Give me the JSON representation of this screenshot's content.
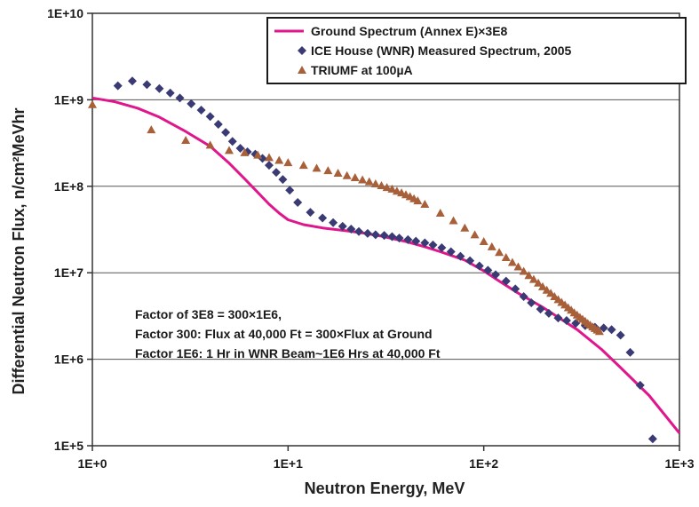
{
  "chart_data": {
    "type": "scatter",
    "xscale": "log",
    "yscale": "log",
    "xlim": [
      1,
      1000
    ],
    "ylim": [
      100000,
      10000000000
    ],
    "xlabel": "Neutron Energy, MeV",
    "ylabel": "Differential Neutron Flux, n/cm²MeVhr",
    "grid": "horizontal",
    "legend_position": "top-right",
    "xticks": [
      "1E+0",
      "1E+1",
      "1E+2",
      "1E+3"
    ],
    "yticks": [
      "1E+5",
      "1E+6",
      "1E+7",
      "1E+8",
      "1E+9",
      "1E+10"
    ],
    "series": [
      {
        "name": "Ground Spectrum (Annex E)×3E8",
        "style": "line",
        "color": "#e0168c",
        "x": [
          1.0,
          1.3,
          1.7,
          2.2,
          3.0,
          4.0,
          5.0,
          6.0,
          7.0,
          8.0,
          9.0,
          10,
          12,
          15,
          20,
          25,
          30,
          40,
          50,
          60,
          80,
          100,
          120,
          150,
          200,
          300,
          400,
          500,
          700,
          1000
        ],
        "y": [
          1050000000.0,
          950000000.0,
          800000000.0,
          630000000.0,
          430000000.0,
          290000000.0,
          185000000.0,
          122000000.0,
          85000000.0,
          62000000.0,
          49000000.0,
          41000000.0,
          36000000.0,
          33000000.0,
          30500000.0,
          28500000.0,
          26500000.0,
          23000000.0,
          20000000.0,
          17500000.0,
          14000000.0,
          10500000.0,
          8000000.0,
          5800000.0,
          4000000.0,
          2200000.0,
          1300000.0,
          800000.0,
          380000.0,
          140000.0
        ]
      },
      {
        "name": "ICE House (WNR) Measured Spectrum, 2005",
        "style": "diamond",
        "color": "#3a3a74",
        "x": [
          1.35,
          1.6,
          1.9,
          2.2,
          2.5,
          2.8,
          3.2,
          3.6,
          4.0,
          4.4,
          4.8,
          5.2,
          5.7,
          6.2,
          6.8,
          7.4,
          8.0,
          8.7,
          9.4,
          10.2,
          11.2,
          13.0,
          15.0,
          17.0,
          19.0,
          21.0,
          23.0,
          25.5,
          28.0,
          31.0,
          34.0,
          37.0,
          41.0,
          45.0,
          50.0,
          55.0,
          61.0,
          68.0,
          76.0,
          85.0,
          95.0,
          105,
          115,
          130,
          145,
          160,
          175,
          195,
          215,
          240,
          265,
          295,
          330,
          370,
          410,
          450,
          500,
          560,
          630,
          730
        ],
        "y": [
          1450000000.0,
          1650000000.0,
          1500000000.0,
          1350000000.0,
          1200000000.0,
          1050000000.0,
          900000000.0,
          760000000.0,
          640000000.0,
          520000000.0,
          420000000.0,
          330000000.0,
          275000000.0,
          250000000.0,
          235000000.0,
          210000000.0,
          175000000.0,
          145000000.0,
          120000000.0,
          90000000.0,
          65000000.0,
          50000000.0,
          43000000.0,
          38000000.0,
          34500000.0,
          32000000.0,
          30000000.0,
          28500000.0,
          27500000.0,
          27000000.0,
          26200000.0,
          25200000.0,
          24200000.0,
          23200000.0,
          22200000.0,
          21000000.0,
          19500000.0,
          17500000.0,
          15500000.0,
          13800000.0,
          12000000.0,
          10700000.0,
          9500000.0,
          8000000.0,
          6500000.0,
          5300000.0,
          4500000.0,
          3800000.0,
          3400000.0,
          3000000.0,
          2800000.0,
          2600000.0,
          2450000.0,
          2350000.0,
          2300000.0,
          2200000.0,
          1900000.0,
          1200000.0,
          500000.0,
          120000.0
        ]
      },
      {
        "name": "TRIUMF at 100µA",
        "style": "triangle",
        "color": "#a8603a",
        "x": [
          1.0,
          2.0,
          3.0,
          4.0,
          5.0,
          6.0,
          7.0,
          8.0,
          9.0,
          10,
          12,
          14,
          16,
          18,
          20,
          22,
          24,
          26,
          28,
          30,
          32,
          34,
          36,
          38,
          40,
          42,
          44,
          46,
          50,
          60,
          70,
          80,
          90,
          100,
          110,
          120,
          130,
          140,
          150,
          160,
          170,
          180,
          190,
          200,
          210,
          220,
          230,
          240,
          250,
          260,
          270,
          280,
          290,
          300,
          310,
          320,
          330,
          340,
          350,
          360,
          370,
          380,
          390
        ],
        "y": [
          880000000.0,
          450000000.0,
          340000000.0,
          300000000.0,
          260000000.0,
          245000000.0,
          230000000.0,
          215000000.0,
          200000000.0,
          188000000.0,
          175000000.0,
          162000000.0,
          152000000.0,
          142000000.0,
          133000000.0,
          126000000.0,
          119000000.0,
          113000000.0,
          107000000.0,
          102000000.0,
          97000000.0,
          93000000.0,
          88000000.0,
          84000000.0,
          80000000.0,
          76000000.0,
          72000000.0,
          68000000.0,
          62000000.0,
          49000000.0,
          40000000.0,
          33000000.0,
          27500000.0,
          23000000.0,
          20000000.0,
          17200000.0,
          15000000.0,
          13200000.0,
          11700000.0,
          10400000.0,
          9300000.0,
          8400000.0,
          7600000.0,
          6900000.0,
          6300000.0,
          5800000.0,
          5300000.0,
          4900000.0,
          4550000.0,
          4250000.0,
          3950000.0,
          3700000.0,
          3450000.0,
          3250000.0,
          3050000.0,
          2900000.0,
          2750000.0,
          2600000.0,
          2480000.0,
          2370000.0,
          2270000.0,
          2180000.0,
          2100000.0
        ]
      }
    ],
    "annotations": [
      "Factor of 3E8 = 300×1E6,",
      "Factor 300: Flux at 40,000 Ft = 300×Flux at Ground",
      "Factor 1E6: 1 Hr in WNR Beam~1E6 Hrs at 40,000 Ft"
    ]
  }
}
